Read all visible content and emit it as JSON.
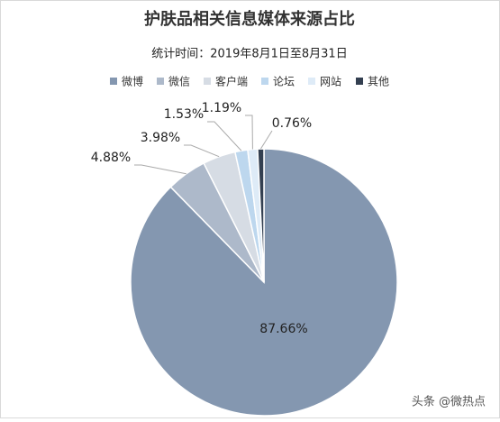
{
  "chart_data": {
    "type": "pie",
    "title": "护肤品相关信息媒体来源占比",
    "subtitle": "统计时间：2019年8月1日至8月31日",
    "categories": [
      "微博",
      "微信",
      "客户端",
      "论坛",
      "网站",
      "其他"
    ],
    "values": [
      87.66,
      4.88,
      3.98,
      1.53,
      1.19,
      0.76
    ],
    "value_labels": [
      "87.66%",
      "4.88%",
      "3.98%",
      "1.53%",
      "1.19%",
      "0.76%"
    ],
    "colors": [
      "#8497b0",
      "#adb9ca",
      "#d6dce4",
      "#bdd7ee",
      "#deebf7",
      "#333f50"
    ],
    "legend": "top"
  },
  "watermark": "头条 @微热点"
}
